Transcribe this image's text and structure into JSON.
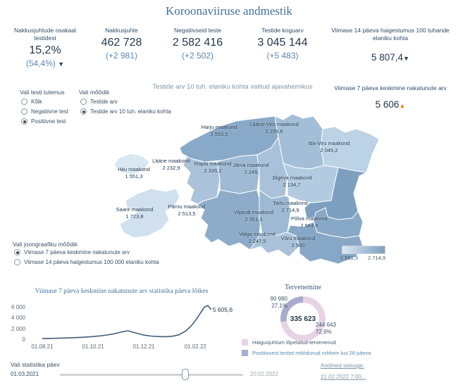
{
  "title": "Koroonaviiruse andmestik",
  "icons": {
    "up": "▲",
    "down": "▼"
  },
  "colors": {
    "accent": "#44719c",
    "kpi_value": "#22384c",
    "sub_value": "#5b87b0",
    "trend_up": "#e8820c",
    "trend_down": "#2c3e50",
    "map_low": "#d9e7f2",
    "map_high": "#7d9fc0",
    "donut_pink": "#e7d3e4",
    "donut_purple": "#a9abce",
    "line": "#3f5d78"
  },
  "kpis": [
    {
      "label": "Nakkusjuhtude osakaal testidest",
      "value": "15,2%",
      "sub": "(54,4%)",
      "trend": "down"
    },
    {
      "label": "Nakkusjuhte",
      "value": "462 728",
      "sub": "(+2 981)"
    },
    {
      "label": "Negatiivseid teste",
      "value": "2 582 416",
      "sub": "(+2 502)"
    },
    {
      "label": "Testide koguarv",
      "value": "3 045 144",
      "sub": "(+5 483)"
    },
    {
      "label": "Viimase 14 päeva haigestumus 100 tuhande elaniku kohta",
      "value": "5 807,4",
      "trend": "down"
    }
  ],
  "kpi_7day": {
    "label": "Viimase 7 päeva keskmine nakatunute arv",
    "value": "5 606",
    "trend": "up"
  },
  "filters": {
    "test_result": {
      "label": "Vali testi tulemus",
      "options": [
        "Kõik",
        "Negatiivne test",
        "Positiivne test"
      ],
      "selected": "Positiivne test"
    },
    "metric": {
      "label": "Vali mõõdik",
      "options": [
        "Testide arv",
        "Testide arv 10 tuh. elaniku kohta"
      ],
      "selected": "Testide arv 10 tuh. elaniku kohta"
    },
    "line_metric": {
      "label": "Vali joongraafiku mõõdik",
      "options": [
        "Viimase 7 päeva keskmine nakatunute arv",
        "Viimase 14 päeva haigestumus 100 000 elaniku kohta"
      ],
      "selected": "Viimase 7 päeva keskmine nakatunute arv"
    }
  },
  "map": {
    "title": "Testide arv 10 tuh. elaniku kohta valitud ajavahemikus",
    "legend_min": "1 551,3",
    "legend_max": "2 714,9",
    "regions": [
      {
        "name": "Harju maakond",
        "value": "2 553,5",
        "fill": "#89a9c8"
      },
      {
        "name": "Lääne-Viru maakond",
        "value": "2 299,8",
        "fill": "#a3bed7"
      },
      {
        "name": "Ida-Viru maakond",
        "value": "2 045,2",
        "fill": "#bcd2e5"
      },
      {
        "name": "Lääne maakond",
        "value": "2 232,9",
        "fill": "#aac3db"
      },
      {
        "name": "Hiiu maakond",
        "value": "1 551,3",
        "fill": "#d9e7f2"
      },
      {
        "name": "Rapla maakond",
        "value": "2 335,2",
        "fill": "#9fbad4"
      },
      {
        "name": "Järva maakond",
        "value": "2 245",
        "fill": "#a9c2da"
      },
      {
        "name": "Jõgeva maakond",
        "value": "2 134,7",
        "fill": "#b3cbe0"
      },
      {
        "name": "Saare maakond",
        "value": "1 723,8",
        "fill": "#d0e0ee"
      },
      {
        "name": "Pärnu maakond",
        "value": "2 513,5",
        "fill": "#8dacca"
      },
      {
        "name": "Viljandi maakond",
        "value": "2 351,3",
        "fill": "#9db9d3"
      },
      {
        "name": "Tartu maakond",
        "value": "2 714,9",
        "fill": "#7d9fc0"
      },
      {
        "name": "Põlva maakond",
        "value": "2 564,6",
        "fill": "#88a8c7"
      },
      {
        "name": "Valga maakond",
        "value": "2 247,5",
        "fill": "#a9c2da"
      },
      {
        "name": "Võru maakond",
        "value": "2 580",
        "fill": "#87a7c6"
      }
    ]
  },
  "chart_data": [
    {
      "type": "line",
      "title": "Viimase 7 päeva keskmine nakatunute arv statistika päeva lõikes",
      "xlabel": "",
      "ylabel": "",
      "x_max": 210,
      "y_max": 6500,
      "x_days": [
        0,
        14,
        31,
        45,
        61,
        75,
        85,
        96,
        103,
        111,
        122,
        131,
        141,
        149,
        157,
        164,
        172,
        179,
        186,
        191,
        195,
        199,
        203
      ],
      "values": [
        250,
        300,
        380,
        470,
        620,
        850,
        1100,
        1500,
        1700,
        1350,
        900,
        720,
        630,
        600,
        700,
        950,
        1600,
        2600,
        4000,
        5200,
        6100,
        6350,
        5605.6
      ],
      "y_ticks": [
        0,
        2000,
        4000,
        6000
      ],
      "y_tick_labels": [
        "0",
        "2 000",
        "4 000",
        "6 000"
      ],
      "x_tick_days": [
        0,
        61,
        122,
        184
      ],
      "x_tick_labels": [
        "01.08.21",
        "01.10.21",
        "01.12.21",
        "01.02.22"
      ],
      "end_label": "5 605,6",
      "grid": false,
      "legend": false
    },
    {
      "type": "pie",
      "title": "Tervenemine",
      "center_total": "335 623",
      "slices": [
        {
          "label": "Haigusjuhtum lõpetatud-tervenenud",
          "value": 244643,
          "pct": 72.9,
          "display_value": "244 643",
          "display_pct": "72,9%",
          "color": "#e7d3e4"
        },
        {
          "label": "Positiivsest testist möödunud rohkem kui 28 päeva",
          "value": 90980,
          "pct": 27.1,
          "display_value": "90 980",
          "display_pct": "27,1%",
          "color": "#a9abce"
        }
      ],
      "legend_position": "bottom-left"
    },
    {
      "type": "choropleth",
      "title": "Testide arv 10 tuh. elaniku kohta valitud ajavahemikus",
      "categories": [
        "Harju maakond",
        "Lääne-Viru maakond",
        "Ida-Viru maakond",
        "Lääne maakond",
        "Hiiu maakond",
        "Rapla maakond",
        "Järva maakond",
        "Jõgeva maakond",
        "Saare maakond",
        "Pärnu maakond",
        "Viljandi maakond",
        "Tartu maakond",
        "Põlva maakond",
        "Valga maakond",
        "Võru maakond"
      ],
      "values": [
        2553.5,
        2299.8,
        2045.2,
        2232.9,
        1551.3,
        2335.2,
        2245,
        2134.7,
        1723.8,
        2513.5,
        2351.3,
        2714.9,
        2564.6,
        2247.5,
        2580
      ],
      "range": [
        1551.3,
        2714.9
      ]
    }
  ],
  "slider": {
    "label": "Vali statistika päev",
    "start": "01.03.2021",
    "end": "20.02.2022"
  },
  "footer": {
    "label": "Andmed seisuga:",
    "value": "21.02.2022 7:00..."
  }
}
